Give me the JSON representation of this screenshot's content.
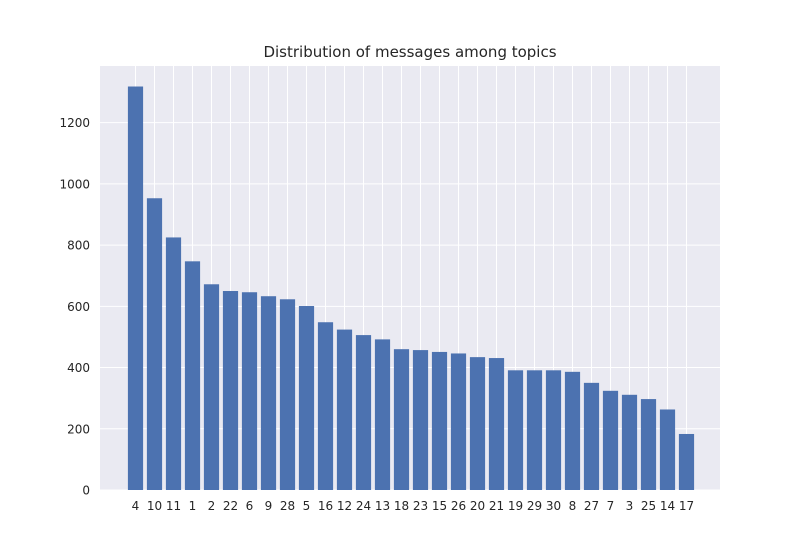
{
  "chart_data": {
    "type": "bar",
    "title": "Distribution of messages among topics",
    "xlabel": "",
    "ylabel": "",
    "categories": [
      "4",
      "10",
      "11",
      "1",
      "2",
      "22",
      "6",
      "9",
      "28",
      "5",
      "16",
      "12",
      "24",
      "13",
      "18",
      "23",
      "15",
      "26",
      "20",
      "21",
      "19",
      "29",
      "30",
      "8",
      "27",
      "7",
      "3",
      "25",
      "14",
      "17"
    ],
    "values": [
      1318,
      953,
      825,
      747,
      672,
      650,
      646,
      633,
      623,
      601,
      548,
      524,
      506,
      492,
      460,
      457,
      451,
      446,
      434,
      431,
      391,
      391,
      391,
      386,
      350,
      324,
      311,
      297,
      263,
      183
    ],
    "ylim": [
      0,
      1385
    ],
    "yticks": [
      0,
      200,
      400,
      600,
      800,
      1000,
      1200
    ],
    "grid": true,
    "bar_color": "#4c72b0",
    "background_color": "#eaeaf2",
    "grid_color": "#ffffff"
  }
}
